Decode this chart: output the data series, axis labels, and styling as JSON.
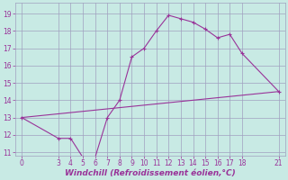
{
  "xlabel": "Windchill (Refroidissement éolien,°C)",
  "bg_color": "#c8eae4",
  "grid_color": "#a0a0c0",
  "line_color": "#993399",
  "line1_x": [
    0,
    3,
    4,
    5,
    6,
    7,
    8,
    9,
    10,
    11,
    12,
    13,
    14,
    15,
    16,
    17,
    18,
    21
  ],
  "line1_y": [
    13.0,
    11.8,
    11.8,
    10.7,
    10.7,
    13.0,
    14.0,
    16.5,
    17.0,
    18.0,
    18.9,
    18.7,
    18.5,
    18.1,
    17.6,
    17.8,
    16.7,
    14.5
  ],
  "line2_x": [
    0,
    21
  ],
  "line2_y": [
    13.0,
    14.5
  ],
  "xlim": [
    -0.5,
    21.5
  ],
  "ylim": [
    10.8,
    19.6
  ],
  "yticks": [
    11,
    12,
    13,
    14,
    15,
    16,
    17,
    18,
    19
  ],
  "xticks": [
    0,
    3,
    4,
    5,
    6,
    7,
    8,
    9,
    10,
    11,
    12,
    13,
    14,
    15,
    16,
    17,
    18,
    21
  ],
  "xlabel_fontsize": 6.5,
  "tick_fontsize": 5.5
}
